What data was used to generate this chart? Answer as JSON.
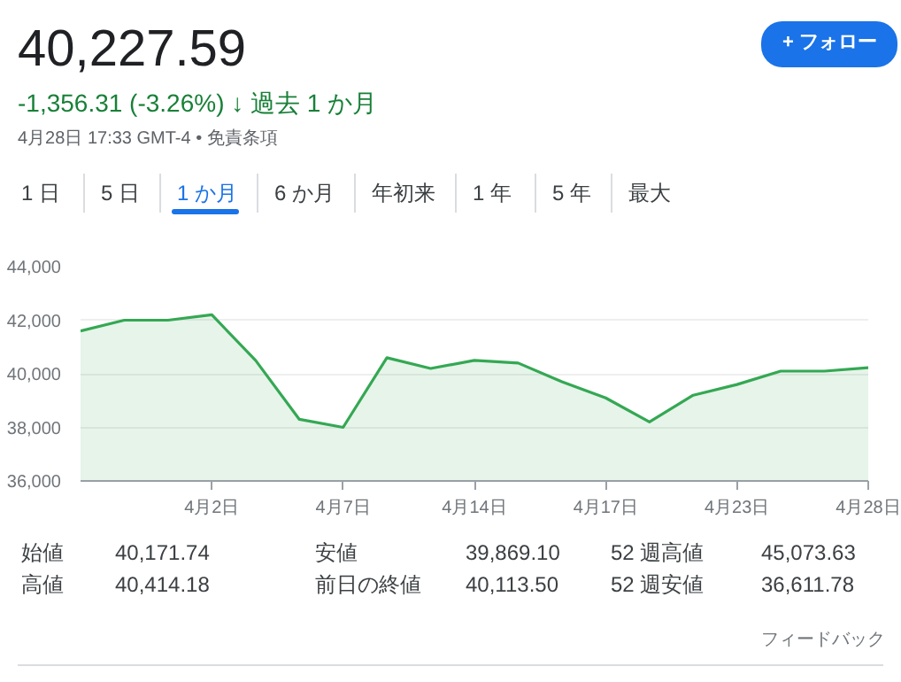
{
  "chart_data": {
    "type": "area",
    "title": "40,227.59",
    "subtitle": "-1,356.31 (-3.26%) ↓ 過去 1 か月",
    "categories": [
      null,
      null,
      null,
      "4月2日",
      null,
      null,
      "4月7日",
      null,
      null,
      "4月14日",
      null,
      null,
      "4月17日",
      null,
      null,
      "4月23日",
      null,
      null,
      "4月28日"
    ],
    "series": [
      {
        "color": "#34a853",
        "values": [
          41600,
          42000,
          42000,
          42200,
          40500,
          38300,
          38000,
          40600,
          40200,
          40500,
          40400,
          39700,
          39100,
          38200,
          39200,
          39600,
          40100,
          40100,
          40227.59
        ]
      }
    ],
    "ylim": [
      36000,
      44000
    ],
    "yticks": [
      {
        "value": 36000,
        "label": "36,000"
      },
      {
        "value": 38000,
        "label": "38,000"
      },
      {
        "value": 40000,
        "label": "40,000"
      },
      {
        "value": 42000,
        "label": "42,000"
      },
      {
        "value": 44000,
        "label": "44,000"
      }
    ],
    "grid": "y",
    "annotations": [
      "4月28日 17:33 GMT-4 • 免責条項",
      "+ フォロー",
      "1 日",
      "5 日",
      "1 か月",
      "6 か月",
      "年初来",
      "1 年",
      "5 年",
      "最大",
      "始値",
      "40,171.74",
      "安値",
      "39,869.10",
      "52 週高値",
      "45,073.63",
      "高値",
      "40,414.18",
      "前日の終値",
      "40,113.50",
      "52 週安値",
      "36,611.78",
      "フィードバック"
    ]
  }
}
